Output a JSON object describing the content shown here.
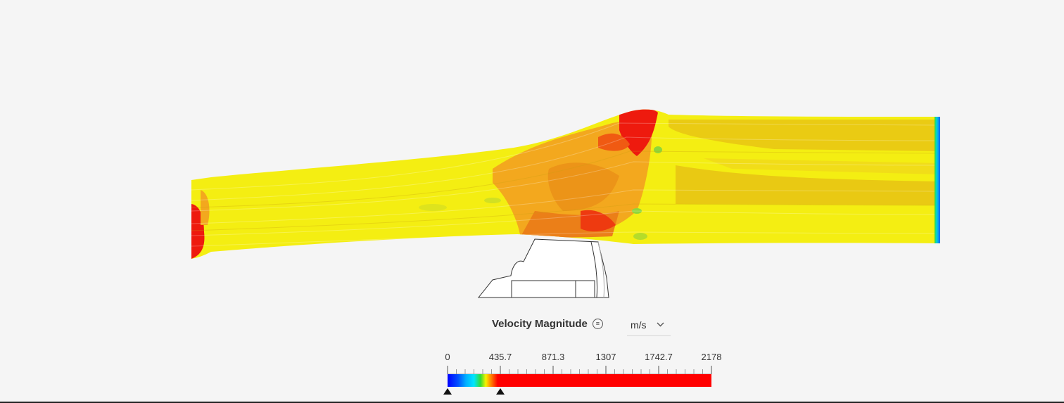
{
  "legend": {
    "title": "Velocity Magnitude",
    "menu_icon": "hamburger-menu-icon",
    "unit": "m/s",
    "unit_icon": "chevron-down-icon",
    "ticks": [
      "0",
      "435.7",
      "871.3",
      "1307",
      "1742.7",
      "2178"
    ],
    "min_value": 0,
    "max_value": 2178,
    "lower_handle_value": 0,
    "upper_handle_value": 435.7,
    "colors": {
      "blue": "#0000ff",
      "cyan": "#00e5ff",
      "green": "#33dd33",
      "yellow": "#f7f200",
      "orange": "#ff9a00",
      "red": "#ff0000"
    }
  },
  "model": {
    "duct_colors": {
      "yellow": "#f4ee12",
      "dark_yellow": "#e8c414",
      "orange": "#f3a81e",
      "red": "#ee1a0e",
      "green": "#8fd63a",
      "cyan": "#1aa5e0"
    }
  }
}
